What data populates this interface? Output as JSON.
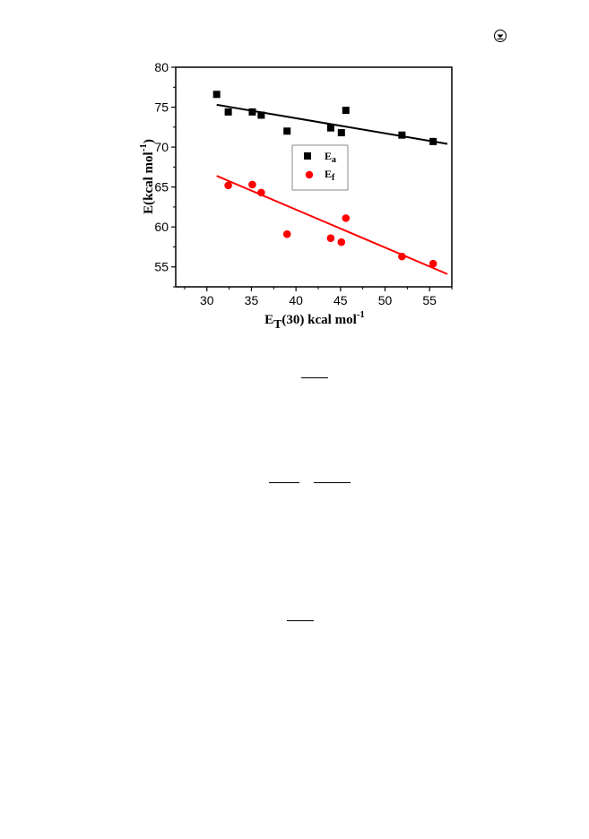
{
  "page": {
    "corner_icon": "circled-arrow-down-icon"
  },
  "chart_data": {
    "type": "scatter",
    "xlabel_main": "E",
    "xlabel_sub": "T",
    "xlabel_rest": "(30) kcal mol",
    "xlabel_sup": "-1",
    "ylabel_main": "E(kcal mol",
    "ylabel_sup": "-1",
    "ylabel_end": ")",
    "xlim": [
      26.5,
      57.5
    ],
    "ylim": [
      52.5,
      80
    ],
    "xticks": [
      30,
      35,
      40,
      45,
      50,
      55
    ],
    "yticks": [
      55,
      60,
      65,
      70,
      75,
      80
    ],
    "legend_position": "inside-right",
    "series": [
      {
        "name_main": "E",
        "name_sub": "a",
        "marker": "square",
        "color": "#000000",
        "x": [
          31.1,
          32.4,
          35.1,
          36.1,
          39.0,
          43.9,
          45.1,
          45.6,
          51.9,
          55.4
        ],
        "y": [
          76.6,
          74.4,
          74.4,
          74.0,
          72.0,
          72.4,
          71.8,
          74.6,
          71.5,
          70.7
        ],
        "fit": {
          "x": [
            31.1,
            57.0
          ],
          "y": [
            75.3,
            70.4
          ]
        }
      },
      {
        "name_main": "E",
        "name_sub": "f",
        "marker": "circle",
        "color": "#ff0000",
        "x": [
          32.4,
          35.1,
          36.1,
          39.0,
          43.9,
          45.1,
          45.6,
          51.9,
          55.4
        ],
        "y": [
          65.2,
          65.3,
          64.3,
          59.1,
          58.6,
          58.1,
          61.1,
          56.3,
          55.4
        ],
        "fit": {
          "x": [
            31.1,
            57.0
          ],
          "y": [
            66.4,
            54.1
          ]
        }
      }
    ]
  }
}
